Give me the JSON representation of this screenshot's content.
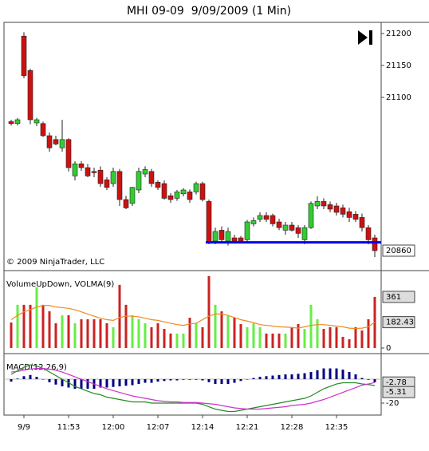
{
  "chart_data": [
    {
      "type": "candlestick",
      "title": "MHI 09-09  9/09/2009 (1 Min)",
      "note": "© 2009 NinjaTrader, LLC",
      "open": [
        21062,
        21059,
        21196,
        21142,
        21060,
        21059,
        21040,
        21034,
        21021,
        21034,
        20977,
        20996,
        20990,
        20984,
        20986,
        20971,
        20965,
        20984,
        20940,
        20934,
        20955,
        20980,
        20984,
        20967,
        20965,
        20946,
        20942,
        20949,
        20952,
        20952,
        20965,
        20937,
        20875,
        20892,
        20875,
        20880,
        20880,
        20877,
        20902,
        20909,
        20915,
        20915,
        20905,
        20892,
        20900,
        20896,
        20877,
        20896,
        20930,
        20937,
        20932,
        20930,
        20927,
        20921,
        20917,
        20912,
        20896,
        20880
      ],
      "high": [
        21065,
        21068,
        21202,
        21145,
        21068,
        21062,
        21045,
        21040,
        21065,
        21036,
        21000,
        21000,
        20996,
        20990,
        20992,
        20975,
        20990,
        20988,
        20946,
        20960,
        20990,
        20992,
        20988,
        20970,
        20970,
        20950,
        20955,
        20958,
        20956,
        20968,
        20968,
        20940,
        20896,
        20898,
        20896,
        20885,
        20883,
        20908,
        20912,
        20920,
        20920,
        20918,
        20910,
        20905,
        20905,
        20900,
        20900,
        20937,
        20945,
        20942,
        20937,
        20935,
        20932,
        20927,
        20922,
        20918,
        20900,
        20885
      ],
      "low": [
        21056,
        21056,
        21130,
        21058,
        21055,
        21038,
        21015,
        21025,
        21015,
        20984,
        20970,
        20985,
        20975,
        20975,
        20960,
        20955,
        20960,
        20930,
        20925,
        20930,
        20950,
        20975,
        20960,
        20955,
        20940,
        20935,
        20938,
        20945,
        20935,
        20948,
        20937,
        20870,
        20870,
        20874,
        20868,
        20872,
        20872,
        20872,
        20898,
        20905,
        20905,
        20898,
        20892,
        20885,
        20890,
        20880,
        20870,
        20894,
        20925,
        20925,
        20920,
        20915,
        20912,
        20905,
        20905,
        20890,
        20870,
        20850
      ],
      "close": [
        21059,
        21065,
        21134,
        21065,
        21065,
        21040,
        21021,
        21027,
        21034,
        20990,
        20996,
        20990,
        20977,
        20982,
        20965,
        20959,
        20984,
        20940,
        20927,
        20959,
        20984,
        20987,
        20965,
        20959,
        20942,
        20940,
        20952,
        20955,
        20940,
        20965,
        20940,
        20874,
        20890,
        20877,
        20890,
        20875,
        20875,
        20905,
        20907,
        20915,
        20909,
        20902,
        20896,
        20900,
        20892,
        20887,
        20896,
        20934,
        20937,
        20930,
        20925,
        20920,
        20917,
        20912,
        20909,
        20896,
        20877,
        20860
      ],
      "up_color": "#33cc33",
      "down_color": "#cc1111",
      "hline": {
        "value": 20873,
        "start": 31,
        "color": "#0000ee"
      },
      "ylim": [
        20830,
        21217.5
      ],
      "yticks": [
        21100,
        21150,
        21200
      ]
    },
    {
      "type": "bar",
      "title": "VolumeUpDown, VOLMA(9)",
      "values": [
        180,
        305,
        305,
        305,
        429,
        305,
        259,
        175,
        231,
        231,
        175,
        203,
        203,
        203,
        203,
        175,
        147,
        446,
        305,
        231,
        203,
        175,
        147,
        175,
        135,
        102,
        102,
        102,
        214,
        175,
        147,
        508,
        305,
        259,
        231,
        214,
        169,
        147,
        175,
        147,
        102,
        102,
        102,
        102,
        147,
        169,
        135,
        305,
        203,
        135,
        147,
        147,
        79,
        62,
        147,
        124,
        203,
        361
      ],
      "ma_values": [
        200,
        230,
        255,
        270,
        290,
        300,
        300,
        290,
        285,
        280,
        270,
        255,
        240,
        225,
        210,
        200,
        195,
        215,
        225,
        225,
        220,
        210,
        200,
        195,
        185,
        175,
        165,
        160,
        170,
        175,
        200,
        225,
        240,
        240,
        230,
        215,
        200,
        190,
        180,
        165,
        160,
        155,
        150,
        148,
        145,
        140,
        150,
        160,
        165,
        165,
        160,
        155,
        150,
        140,
        138,
        140,
        150,
        182.43
      ],
      "up_color": "#66ee44",
      "down_color": "#cc2222",
      "ma_color": "#f08a20",
      "ylim": [
        -34,
        541
      ],
      "yticks": [
        0
      ]
    },
    {
      "type": "macd",
      "title": "MACD(12,26,9)",
      "categories": [
        null,
        null,
        "9/9",
        null,
        null,
        null,
        null,
        null,
        null,
        "11:53",
        null,
        null,
        null,
        null,
        null,
        null,
        "12:00",
        null,
        null,
        null,
        null,
        null,
        null,
        "12:07",
        null,
        null,
        null,
        null,
        null,
        null,
        "12:14",
        null,
        null,
        null,
        null,
        null,
        null,
        "12:21",
        null,
        null,
        null,
        null,
        null,
        null,
        "12:28",
        null,
        null,
        null,
        null,
        null,
        null,
        "12:35",
        null,
        null,
        null,
        null,
        null,
        null
      ],
      "macd": [
        4,
        7,
        10,
        12,
        11,
        9,
        6,
        3,
        0,
        -3,
        -6,
        -8,
        -10,
        -12,
        -13,
        -15,
        -16,
        -17,
        -18,
        -19,
        -19,
        -19,
        -20,
        -20,
        -20,
        -20,
        -20,
        -20,
        -20,
        -20,
        -21,
        -23,
        -25,
        -26,
        -27,
        -27,
        -26,
        -25,
        -24,
        -23,
        -22,
        -21,
        -20,
        -19,
        -18,
        -17,
        -16,
        -14,
        -11,
        -8,
        -6,
        -4,
        -3,
        -3,
        -3,
        -4,
        -4.5,
        -5.31
      ],
      "signal": [
        6,
        6.5,
        7.5,
        8.5,
        9,
        9,
        8.5,
        7.5,
        6,
        4,
        2,
        0,
        -2,
        -4,
        -6,
        -8,
        -9.5,
        -11,
        -12.5,
        -14,
        -15,
        -16,
        -17,
        -18,
        -18.5,
        -19,
        -19,
        -19.5,
        -19.5,
        -19.5,
        -20,
        -20.5,
        -21,
        -22,
        -23,
        -24,
        -24.5,
        -25,
        -25,
        -25,
        -24.5,
        -24,
        -23.5,
        -23,
        -22,
        -21.5,
        -21,
        -20,
        -18.5,
        -17,
        -15,
        -13,
        -11,
        -9,
        -7,
        -5,
        -4,
        -2.78
      ],
      "histogram": [
        -2,
        0.5,
        2.5,
        3.5,
        2,
        0,
        -2.5,
        -4.5,
        -6,
        -7,
        -8,
        -8,
        -8,
        -8,
        -7,
        -7,
        -6.5,
        -6,
        -5.5,
        -5,
        -4,
        -3,
        -3,
        -2,
        -1.5,
        -1,
        -1,
        -0.5,
        -0.5,
        -0.5,
        -1,
        -2.5,
        -4,
        -4,
        -4,
        -3,
        -1.5,
        0,
        1,
        2,
        2.5,
        3,
        3.5,
        4,
        4,
        4.5,
        5,
        6,
        7.5,
        9,
        9,
        9,
        8,
        6,
        4,
        1,
        -0.5,
        -2.53
      ],
      "macd_color": "#228b22",
      "signal_color": "#cc33cc",
      "histogram_color": "#000080",
      "ylim": [
        -30,
        20.7
      ],
      "yticks": [
        -20
      ]
    }
  ]
}
